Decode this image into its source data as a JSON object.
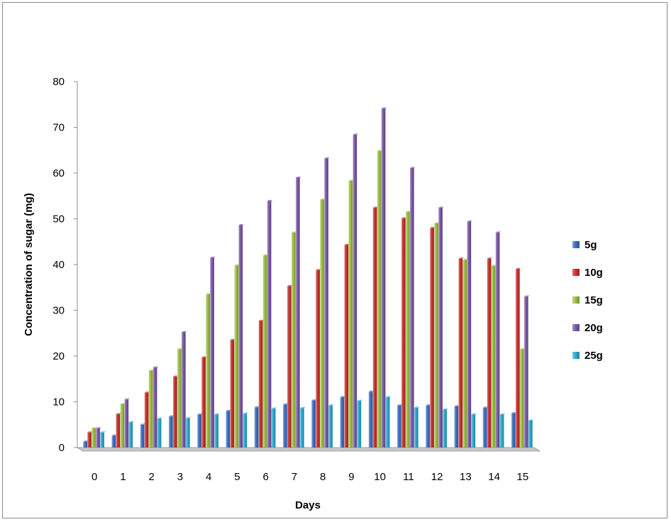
{
  "chart_data": {
    "type": "bar",
    "title": "",
    "xlabel": "Days",
    "ylabel": "Concentration of sugar (mg)",
    "ylim": [
      0,
      80
    ],
    "yticks": [
      0,
      10,
      20,
      30,
      40,
      50,
      60,
      70,
      80
    ],
    "categories": [
      "0",
      "1",
      "2",
      "3",
      "4",
      "5",
      "6",
      "7",
      "8",
      "9",
      "10",
      "11",
      "12",
      "13",
      "14",
      "15"
    ],
    "legend_position": "right",
    "grid": false,
    "series": [
      {
        "name": "5g",
        "color": "#3a6fc4",
        "values": [
          1.3,
          2.6,
          5.0,
          6.8,
          7.2,
          8.0,
          8.8,
          9.4,
          10.3,
          11.0,
          12.2,
          9.2,
          9.2,
          9.0,
          8.7,
          7.5
        ]
      },
      {
        "name": "10g",
        "color": "#c8302c",
        "values": [
          3.3,
          7.3,
          12.0,
          15.5,
          19.7,
          23.5,
          27.7,
          35.3,
          38.8,
          44.3,
          52.4,
          50.1,
          48.0,
          41.3,
          41.3,
          39.0
        ]
      },
      {
        "name": "15g",
        "color": "#9bc13c",
        "values": [
          4.2,
          9.5,
          16.8,
          21.5,
          33.5,
          39.8,
          42.0,
          47.0,
          54.2,
          58.3,
          64.8,
          51.5,
          49.0,
          41.0,
          39.7,
          21.5
        ]
      },
      {
        "name": "20g",
        "color": "#7a58a6",
        "values": [
          4.2,
          10.5,
          17.5,
          25.2,
          41.5,
          48.6,
          53.9,
          59.0,
          63.2,
          68.4,
          74.1,
          61.1,
          52.4,
          49.4,
          47.0,
          33.0
        ]
      },
      {
        "name": "25g",
        "color": "#2aabcf",
        "values": [
          3.3,
          5.5,
          6.3,
          6.4,
          7.2,
          7.4,
          8.5,
          8.6,
          9.2,
          10.2,
          11.0,
          8.7,
          8.3,
          7.2,
          7.2,
          5.9
        ]
      }
    ]
  }
}
